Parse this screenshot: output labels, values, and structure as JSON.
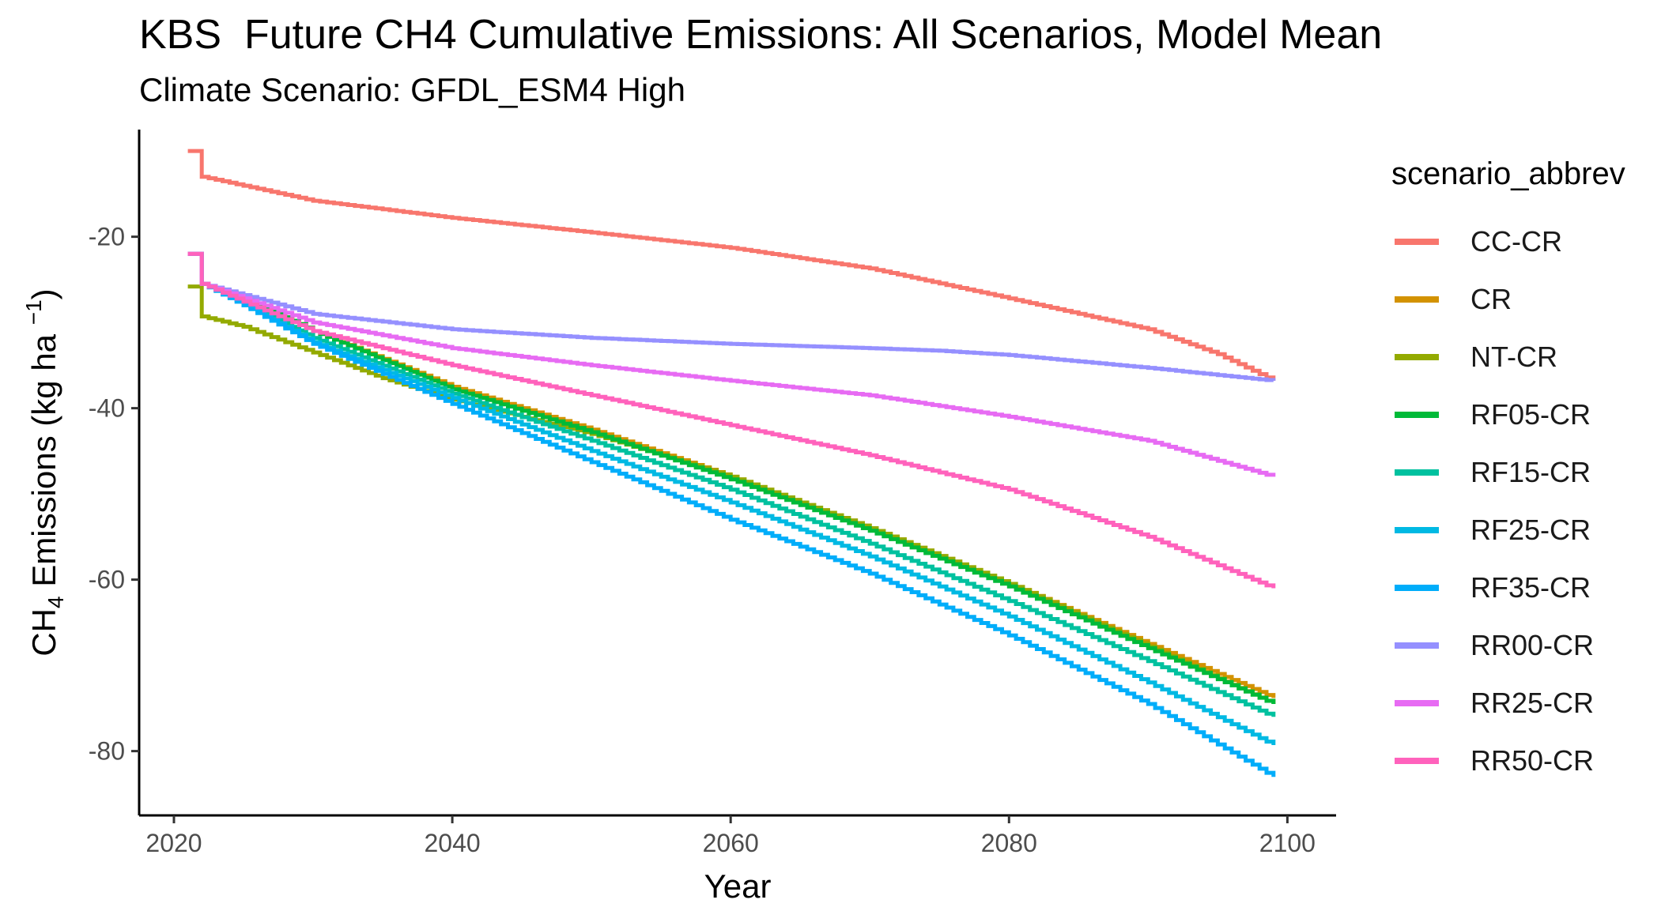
{
  "chart_data": {
    "type": "line",
    "title": "KBS  Future CH4 Cumulative Emissions: All Scenarios, Model Mean",
    "subtitle": "Climate Scenario: GFDL_ESM4 High",
    "xlabel": "Year",
    "ylabel": "CH4 Emissions (kg ha -1)",
    "ylabel_parts": {
      "main": "CH",
      "sub": "4",
      "rest": " Emissions (kg ha ",
      "sup": "−1",
      "close": ")"
    },
    "xlim": [
      2017.5,
      2103.5
    ],
    "ylim": [
      -87.5,
      -7.5
    ],
    "x_ticks": [
      2020,
      2040,
      2060,
      2080,
      2100
    ],
    "x_tick_labels": [
      "2020",
      "2040",
      "2060",
      "2080",
      "2100"
    ],
    "y_ticks": [
      -20,
      -40,
      -60,
      -80
    ],
    "y_tick_labels": [
      "-20",
      "-40",
      "-60",
      "-80"
    ],
    "grid": false,
    "legend_title": "scenario_abbrev",
    "legend_position": "right",
    "series": [
      {
        "name": "CC-CR",
        "color": "#F8766D",
        "x": [
          2021,
          2022,
          2030,
          2040,
          2050,
          2060,
          2070,
          2080,
          2090,
          2095,
          2099
        ],
        "y": [
          -10,
          -13,
          -15.8,
          -17.8,
          -19.5,
          -21.3,
          -23.7,
          -27.2,
          -30.8,
          -33.7,
          -36.8
        ]
      },
      {
        "name": "CR",
        "color": "#D39200",
        "x": [
          2021,
          2022,
          2025,
          2030,
          2040,
          2050,
          2060,
          2070,
          2080,
          2090,
          2099
        ],
        "y": [
          -22,
          -25.5,
          -27,
          -31,
          -37.5,
          -42.5,
          -48,
          -54,
          -60.5,
          -67.5,
          -73.8
        ]
      },
      {
        "name": "NT-CR",
        "color": "#93AA00",
        "x": [
          2021,
          2022,
          2025,
          2030,
          2035,
          2040,
          2045,
          2050,
          2060,
          2070,
          2080,
          2090,
          2099
        ],
        "y": [
          -25.8,
          -29.3,
          -30.5,
          -33.5,
          -36.5,
          -39,
          -41,
          -43,
          -48,
          -54,
          -60.5,
          -67.8,
          -74.5
        ]
      },
      {
        "name": "RF05-CR",
        "color": "#00BA38",
        "x": [
          2021,
          2022,
          2025,
          2030,
          2040,
          2050,
          2060,
          2070,
          2080,
          2090,
          2099
        ],
        "y": [
          -22,
          -25.5,
          -27,
          -31,
          -37.8,
          -42.8,
          -48.3,
          -54.3,
          -60.8,
          -68,
          -74.5
        ]
      },
      {
        "name": "RF15-CR",
        "color": "#00C19F",
        "x": [
          2021,
          2022,
          2025,
          2030,
          2040,
          2050,
          2060,
          2070,
          2080,
          2090,
          2099
        ],
        "y": [
          -22,
          -25.5,
          -27.5,
          -31.8,
          -38.3,
          -43.8,
          -49.5,
          -55.8,
          -62.5,
          -69.5,
          -76
        ]
      },
      {
        "name": "RF25-CR",
        "color": "#00B9E3",
        "x": [
          2021,
          2022,
          2025,
          2030,
          2040,
          2050,
          2060,
          2070,
          2080,
          2090,
          2099
        ],
        "y": [
          -22,
          -25.5,
          -27.8,
          -32.3,
          -38.8,
          -45,
          -51,
          -57.3,
          -64.3,
          -72,
          -79.3
        ]
      },
      {
        "name": "RF35-CR",
        "color": "#00ADFA",
        "x": [
          2021,
          2022,
          2025,
          2030,
          2040,
          2050,
          2060,
          2070,
          2080,
          2090,
          2099
        ],
        "y": [
          -22,
          -25.5,
          -28,
          -32.5,
          -39.5,
          -46.3,
          -53,
          -59.3,
          -66.5,
          -74.5,
          -83
        ]
      },
      {
        "name": "RR00-CR",
        "color": "#9590FF",
        "x": [
          2021,
          2022,
          2030,
          2040,
          2050,
          2060,
          2070,
          2075,
          2080,
          2090,
          2099
        ],
        "y": [
          -22,
          -25.5,
          -29,
          -30.8,
          -31.8,
          -32.5,
          -33,
          -33.3,
          -33.8,
          -35.3,
          -36.8
        ]
      },
      {
        "name": "RR25-CR",
        "color": "#E76BF3",
        "x": [
          2021,
          2022,
          2030,
          2040,
          2050,
          2060,
          2070,
          2080,
          2090,
          2099
        ],
        "y": [
          -22,
          -25.5,
          -30,
          -33,
          -35,
          -36.8,
          -38.5,
          -41,
          -43.8,
          -48
        ]
      },
      {
        "name": "RR50-CR",
        "color": "#FF62BC",
        "x": [
          2021,
          2022,
          2030,
          2040,
          2050,
          2060,
          2070,
          2080,
          2090,
          2099
        ],
        "y": [
          -22,
          -25.5,
          -31,
          -35,
          -38.5,
          -42,
          -45.5,
          -49.5,
          -55,
          -61
        ]
      }
    ]
  }
}
